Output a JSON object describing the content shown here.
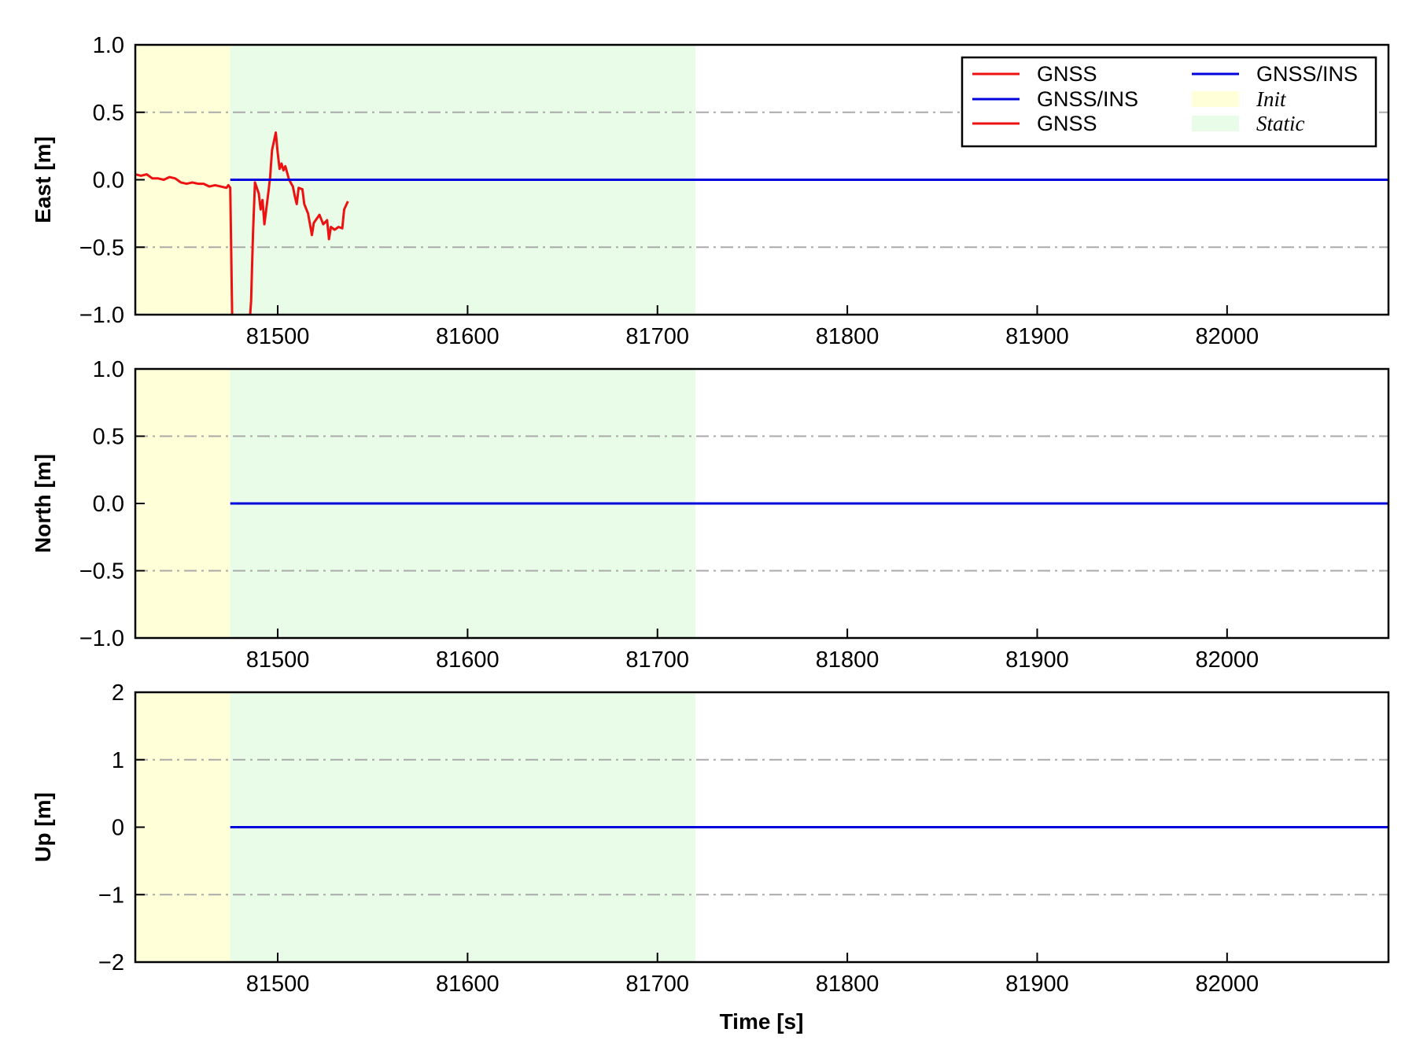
{
  "chart_data": {
    "type": "line",
    "xlabel": "Time [s]",
    "xlim": [
      81425,
      82085
    ],
    "xticks": [
      81500,
      81600,
      81700,
      81800,
      81900,
      82000
    ],
    "xtick_labels": [
      "81500",
      "81600",
      "81700",
      "81800",
      "81900",
      "82000"
    ],
    "regions": [
      {
        "name": "Init",
        "x": [
          81425,
          81475
        ],
        "color": "#ffffd8"
      },
      {
        "name": "Static",
        "x": [
          81475,
          81720
        ],
        "color": "#e8fce8"
      }
    ],
    "legend": {
      "position": "top-right",
      "entries": [
        {
          "label": "GNSS",
          "kind": "line",
          "color": "#ee1111"
        },
        {
          "label": "GNSS/INS",
          "kind": "line",
          "color": "#0000dd"
        },
        {
          "label": "GNSS",
          "kind": "line",
          "color": "#ee1111"
        },
        {
          "label": "GNSS/INS",
          "kind": "line",
          "color": "#0000dd"
        },
        {
          "label": "Init",
          "kind": "patch",
          "color": "#ffffd8"
        },
        {
          "label": "Static",
          "kind": "patch",
          "color": "#e8fce8"
        }
      ]
    },
    "grid": "horizontal dash-dot at minor ticks",
    "panels": [
      {
        "ylabel": "East [m]",
        "ylim": [
          -1.0,
          1.0
        ],
        "yticks": [
          -1.0,
          -0.5,
          0.0,
          0.5,
          1.0
        ],
        "ytick_labels": [
          "−1.0",
          "−0.5",
          "0.0",
          "0.5",
          "1.0"
        ],
        "gridlines": [
          -0.5,
          0.5
        ],
        "series": [
          {
            "name": "GNSS",
            "color": "#ee1111",
            "x": [
              81425,
              81428,
              81431,
              81434,
              81437,
              81440,
              81443,
              81446,
              81449,
              81452,
              81455,
              81458,
              81461,
              81464,
              81467,
              81470,
              81473,
              81474,
              81475,
              81476,
              81477,
              81485,
              81486,
              81487,
              81488,
              81490,
              81491,
              81492,
              81493,
              81495,
              81496,
              81497,
              81499,
              81500,
              81501,
              81502,
              81503,
              81504,
              81506,
              81508,
              81509,
              81510,
              81511,
              81513,
              81514,
              81516,
              81518,
              81519,
              81520,
              81521,
              81522,
              81524,
              81526,
              81527,
              81528,
              81530,
              81532,
              81534,
              81535,
              81537
            ],
            "y": [
              0.04,
              0.03,
              0.04,
              0.01,
              0.01,
              0.0,
              0.02,
              0.01,
              -0.02,
              -0.03,
              -0.02,
              -0.03,
              -0.03,
              -0.05,
              -0.04,
              -0.05,
              -0.06,
              -0.04,
              -0.06,
              -1.0,
              -1.1,
              -1.1,
              -0.9,
              -0.4,
              -0.02,
              -0.1,
              -0.22,
              -0.15,
              -0.33,
              -0.1,
              0.02,
              0.22,
              0.35,
              0.2,
              0.08,
              0.12,
              0.07,
              0.1,
              0.0,
              -0.05,
              -0.12,
              -0.18,
              -0.06,
              -0.07,
              -0.18,
              -0.25,
              -0.41,
              -0.32,
              -0.3,
              -0.28,
              -0.26,
              -0.33,
              -0.3,
              -0.44,
              -0.35,
              -0.37,
              -0.35,
              -0.36,
              -0.22,
              -0.16
            ]
          },
          {
            "name": "GNSS/INS",
            "color": "#0000dd",
            "x": [
              81475,
              82085
            ],
            "y": [
              0,
              0
            ]
          }
        ]
      },
      {
        "ylabel": "North [m]",
        "ylim": [
          -1.0,
          1.0
        ],
        "yticks": [
          -1.0,
          -0.5,
          0.0,
          0.5,
          1.0
        ],
        "ytick_labels": [
          "−1.0",
          "−0.5",
          "0.0",
          "0.5",
          "1.0"
        ],
        "gridlines": [
          -0.5,
          0.5
        ],
        "series": [
          {
            "name": "GNSS/INS",
            "color": "#0000dd",
            "x": [
              81475,
              82085
            ],
            "y": [
              0,
              0
            ]
          }
        ]
      },
      {
        "ylabel": "Up [m]",
        "ylim": [
          -2,
          2
        ],
        "yticks": [
          -2,
          -1,
          0,
          1,
          2
        ],
        "ytick_labels": [
          "−2",
          "−1",
          "0",
          "1",
          "2"
        ],
        "gridlines": [
          -1,
          1
        ],
        "series": [
          {
            "name": "GNSS/INS",
            "color": "#0000dd",
            "x": [
              81475,
              82085
            ],
            "y": [
              0,
              0
            ]
          }
        ]
      }
    ]
  }
}
